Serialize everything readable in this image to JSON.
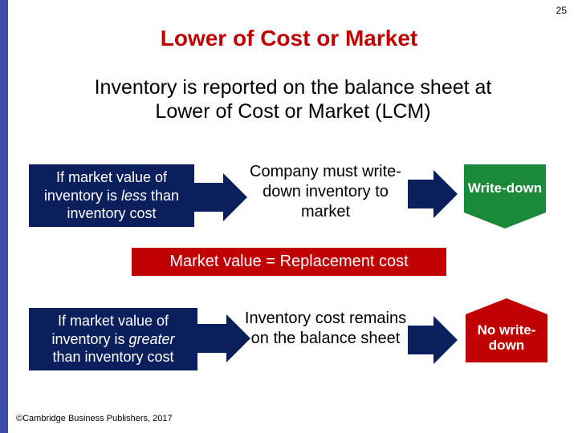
{
  "page_number": "25",
  "title": "Lower of Cost or Market",
  "subtitle_line1": "Inventory is reported on the balance sheet at",
  "subtitle_line2": "Lower of Cost or Market (LCM)",
  "scenario1": {
    "condition_pre": "If market value of inventory is ",
    "condition_em": "less",
    "condition_post": " than inventory cost",
    "result": "Company must write-down inventory to market",
    "callout": "Write-down"
  },
  "banner": "Market value = Replacement cost",
  "scenario2": {
    "condition_pre": "If market value of inventory is ",
    "condition_em": "greater",
    "condition_post": " than inventory cost",
    "result": "Inventory cost remains on the balance sheet",
    "callout": "No write-down"
  },
  "footer": "©Cambridge Business Publishers, 2017",
  "colors": {
    "title_red": "#c00000",
    "box_navy": "#0a1f5c",
    "banner_red": "#c00000",
    "callout_green": "#1a8a3a",
    "callout_red": "#c00000",
    "stripe_blue": "#3b4ba8",
    "background": "#ffffff"
  },
  "fonts": {
    "title_size": 28,
    "subtitle_size": 25,
    "box_size": 18,
    "middle_size": 20,
    "banner_size": 20,
    "callout_size": 17,
    "footer_size": 11
  }
}
